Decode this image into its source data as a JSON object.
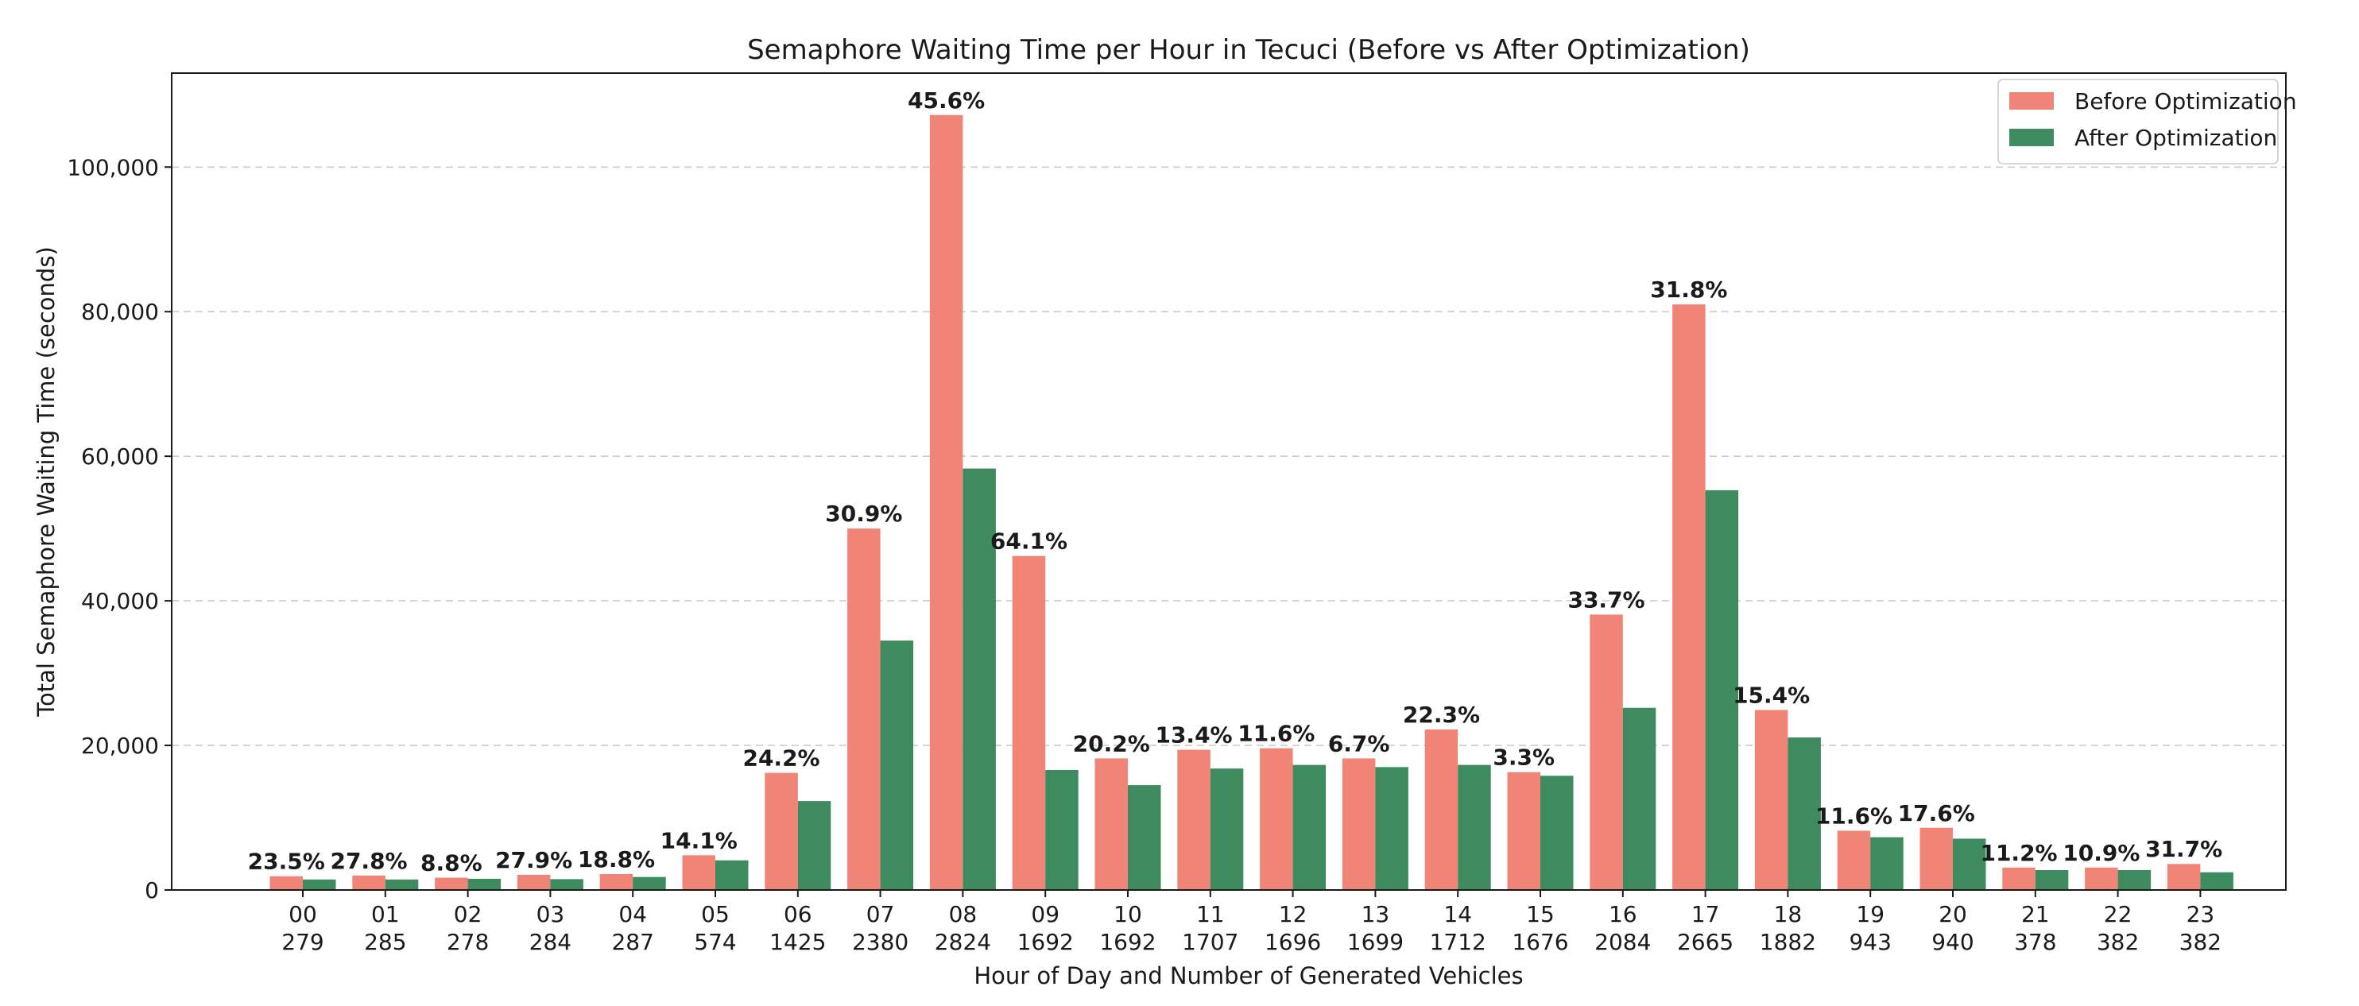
{
  "chart_data": {
    "type": "bar",
    "title": "Semaphore Waiting Time per Hour in Tecuci (Before vs After Optimization)",
    "xlabel": "Hour of Day and Number of Generated Vehicles",
    "ylabel": "Total Semaphore Waiting Time (seconds)",
    "ylim": [
      0,
      113000
    ],
    "yticks": [
      0,
      20000,
      40000,
      60000,
      80000,
      100000
    ],
    "ytick_labels": [
      "0",
      "20,000",
      "40,000",
      "60,000",
      "80,000",
      "100,000"
    ],
    "grid": "y dashed",
    "legend_position": "top-right",
    "categories": [
      "00",
      "01",
      "02",
      "03",
      "04",
      "05",
      "06",
      "07",
      "08",
      "09",
      "10",
      "11",
      "12",
      "13",
      "14",
      "15",
      "16",
      "17",
      "18",
      "19",
      "20",
      "21",
      "22",
      "23"
    ],
    "vehicles": [
      "279",
      "285",
      "278",
      "284",
      "287",
      "574",
      "1425",
      "2380",
      "2824",
      "1692",
      "1692",
      "1707",
      "1696",
      "1699",
      "1712",
      "1676",
      "2084",
      "2665",
      "1882",
      "943",
      "940",
      "378",
      "382",
      "382"
    ],
    "series": [
      {
        "name": "Before Optimization",
        "color": "#f08476",
        "values": [
          1900,
          2000,
          1700,
          2100,
          2200,
          4800,
          16200,
          50000,
          107200,
          46200,
          18200,
          19400,
          19600,
          18200,
          22200,
          16300,
          38100,
          81000,
          24900,
          8200,
          8600,
          3100,
          3100,
          3600
        ]
      },
      {
        "name": "After Optimization",
        "color": "#3d8b5f",
        "values": [
          1450,
          1450,
          1550,
          1500,
          1800,
          4100,
          12300,
          34500,
          58300,
          16600,
          14500,
          16800,
          17300,
          17000,
          17300,
          15800,
          25200,
          55300,
          21100,
          7300,
          7100,
          2750,
          2750,
          2450
        ]
      }
    ],
    "reductions": [
      "23.5%",
      "27.8%",
      "8.8%",
      "27.9%",
      "18.8%",
      "14.1%",
      "24.2%",
      "30.9%",
      "45.6%",
      "64.1%",
      "20.2%",
      "13.4%",
      "11.6%",
      "6.7%",
      "22.3%",
      "3.3%",
      "33.7%",
      "31.8%",
      "15.4%",
      "11.6%",
      "17.6%",
      "11.2%",
      "10.9%",
      "31.7%"
    ]
  }
}
